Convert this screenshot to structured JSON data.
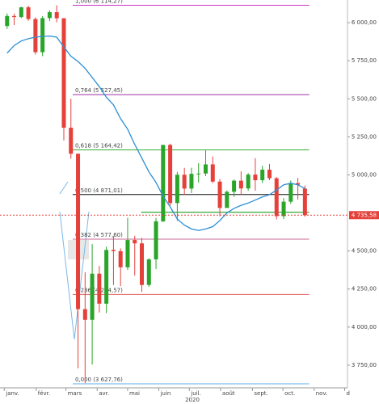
{
  "chart_data": {
    "type": "candlestick",
    "x": [
      0,
      1,
      2,
      3,
      4,
      5,
      6,
      7,
      8,
      9,
      10,
      11,
      12,
      13,
      14,
      15,
      16,
      17,
      18,
      19,
      20,
      21,
      22,
      23,
      24,
      25,
      26,
      27,
      28,
      29,
      30,
      31,
      32,
      33,
      34,
      35,
      36,
      37,
      38,
      39,
      40,
      41,
      42
    ],
    "open": [
      5978,
      6044,
      6037,
      6101,
      6024,
      5806,
      6030,
      6069,
      6029,
      5310,
      5139,
      4118,
      4048,
      4351,
      4154,
      4507,
      4499,
      4393,
      4572,
      4550,
      4277,
      4445,
      4695,
      5197,
      4815,
      5001,
      4910,
      5007,
      5009,
      5069,
      4956,
      4783,
      4889,
      4962,
      4911,
      5002,
      4965,
      5034,
      4978,
      4729,
      4824,
      4946,
      4910
    ],
    "high": [
      6061,
      6059,
      6105,
      6112,
      6035,
      6043,
      6081,
      6114,
      6030,
      5500,
      5140,
      4360,
      4545,
      4402,
      4529,
      4598,
      4517,
      4718,
      4600,
      4586,
      4453,
      4717,
      5197,
      5205,
      5020,
      5046,
      5047,
      5077,
      5161,
      5121,
      4973,
      4898,
      4970,
      5023,
      5012,
      5110,
      5060,
      5072,
      4986,
      4848,
      4963,
      4980,
      4930
    ],
    "low": [
      5959,
      5984,
      6030,
      6012,
      5791,
      5780,
      6010,
      6002,
      5227,
      5106,
      3730,
      3632,
      3754,
      4096,
      4092,
      4277,
      4269,
      4376,
      4339,
      4232,
      4264,
      4381,
      4690,
      4798,
      4698,
      4870,
      4880,
      4950,
      4992,
      4946,
      4728,
      4789,
      4855,
      4869,
      4895,
      4897,
      4946,
      4965,
      4708,
      4710,
      4809,
      4838,
      4725
    ],
    "close": [
      6044,
      6037,
      6101,
      6024,
      5806,
      6030,
      6069,
      6029,
      5310,
      5139,
      4118,
      4048,
      4351,
      4154,
      4507,
      4499,
      4393,
      4572,
      4550,
      4277,
      4445,
      4695,
      5197,
      4815,
      5001,
      4910,
      5007,
      5009,
      5069,
      4956,
      4783,
      4889,
      4962,
      4911,
      5002,
      4965,
      5034,
      4978,
      4729,
      4824,
      4946,
      4935,
      4735
    ],
    "up_color": "#2aa52a",
    "down_color": "#e5403a",
    "moving_average": {
      "color": "#2b8fd6",
      "values": [
        5800,
        5850,
        5880,
        5895,
        5905,
        5910,
        5912,
        5905,
        5840,
        5780,
        5745,
        5700,
        5640,
        5580,
        5510,
        5460,
        5370,
        5300,
        5200,
        5110,
        5020,
        4950,
        4860,
        4790,
        4710,
        4670,
        4645,
        4635,
        4645,
        4660,
        4700,
        4750,
        4780,
        4800,
        4815,
        4835,
        4855,
        4870,
        4900,
        4935,
        4945,
        4935,
        4910
      ]
    },
    "fib_x": [
      9.25,
      42.6
    ],
    "fib_levels": [
      {
        "label": "1,000 (6 114,27)",
        "value": 6114.27,
        "color": "#c837c8"
      },
      {
        "label": "0,764 (5 527,45)",
        "value": 5527.45,
        "color": "#9a2fa8"
      },
      {
        "label": "0,618 (5 164,42)",
        "value": 5164.42,
        "color": "#35b035"
      },
      {
        "label": "0,500 (4 871,01)",
        "value": 4871.01,
        "color": "#111111"
      },
      {
        "label": "0,382 (4 577,60)",
        "value": 4577.6,
        "color": "#cc6a95"
      },
      {
        "label": "0,236 (4 214,57)",
        "value": 4214.57,
        "color": "#e06464"
      },
      {
        "label": "0,000 (3 627,76)",
        "value": 3627.76,
        "color": "#5aaee8"
      }
    ],
    "support": {
      "value": 4755,
      "x": [
        18.9,
        42.6
      ],
      "color": "#3aa83a"
    },
    "last_price": {
      "value": 4735.58,
      "label": "4 735,58",
      "color": "#e5403a"
    },
    "xlim": [
      -1,
      48
    ],
    "xticks": [
      {
        "value": -0.4,
        "label": "janv."
      },
      {
        "value": 4.1,
        "label": "févr."
      },
      {
        "value": 8.3,
        "label": "mars"
      },
      {
        "value": 12.7,
        "label": "avr."
      },
      {
        "value": 17,
        "label": "mai"
      },
      {
        "value": 21.4,
        "label": "juin"
      },
      {
        "value": 25.7,
        "label": "juil."
      },
      {
        "value": 30.1,
        "label": "août"
      },
      {
        "value": 34.6,
        "label": "sept."
      },
      {
        "value": 38.9,
        "label": "oct."
      },
      {
        "value": 43.3,
        "label": "nov."
      },
      {
        "value": 47.6,
        "label": "d"
      }
    ],
    "year_label": "2020",
    "ylim": [
      3601,
      6149
    ],
    "yticks": [
      {
        "value": 3750,
        "label": "3 750,00"
      },
      {
        "value": 4000,
        "label": "4 000,00"
      },
      {
        "value": 4250,
        "label": "4 250,00"
      },
      {
        "value": 4500,
        "label": "4 500,00"
      },
      {
        "value": 5000,
        "label": "5 000,00"
      },
      {
        "value": 5250,
        "label": "5 250,00"
      },
      {
        "value": 5500,
        "label": "5 500,00"
      },
      {
        "value": 5750,
        "label": "5 750,00"
      },
      {
        "value": 6000,
        "label": "6 000,00"
      }
    ]
  }
}
